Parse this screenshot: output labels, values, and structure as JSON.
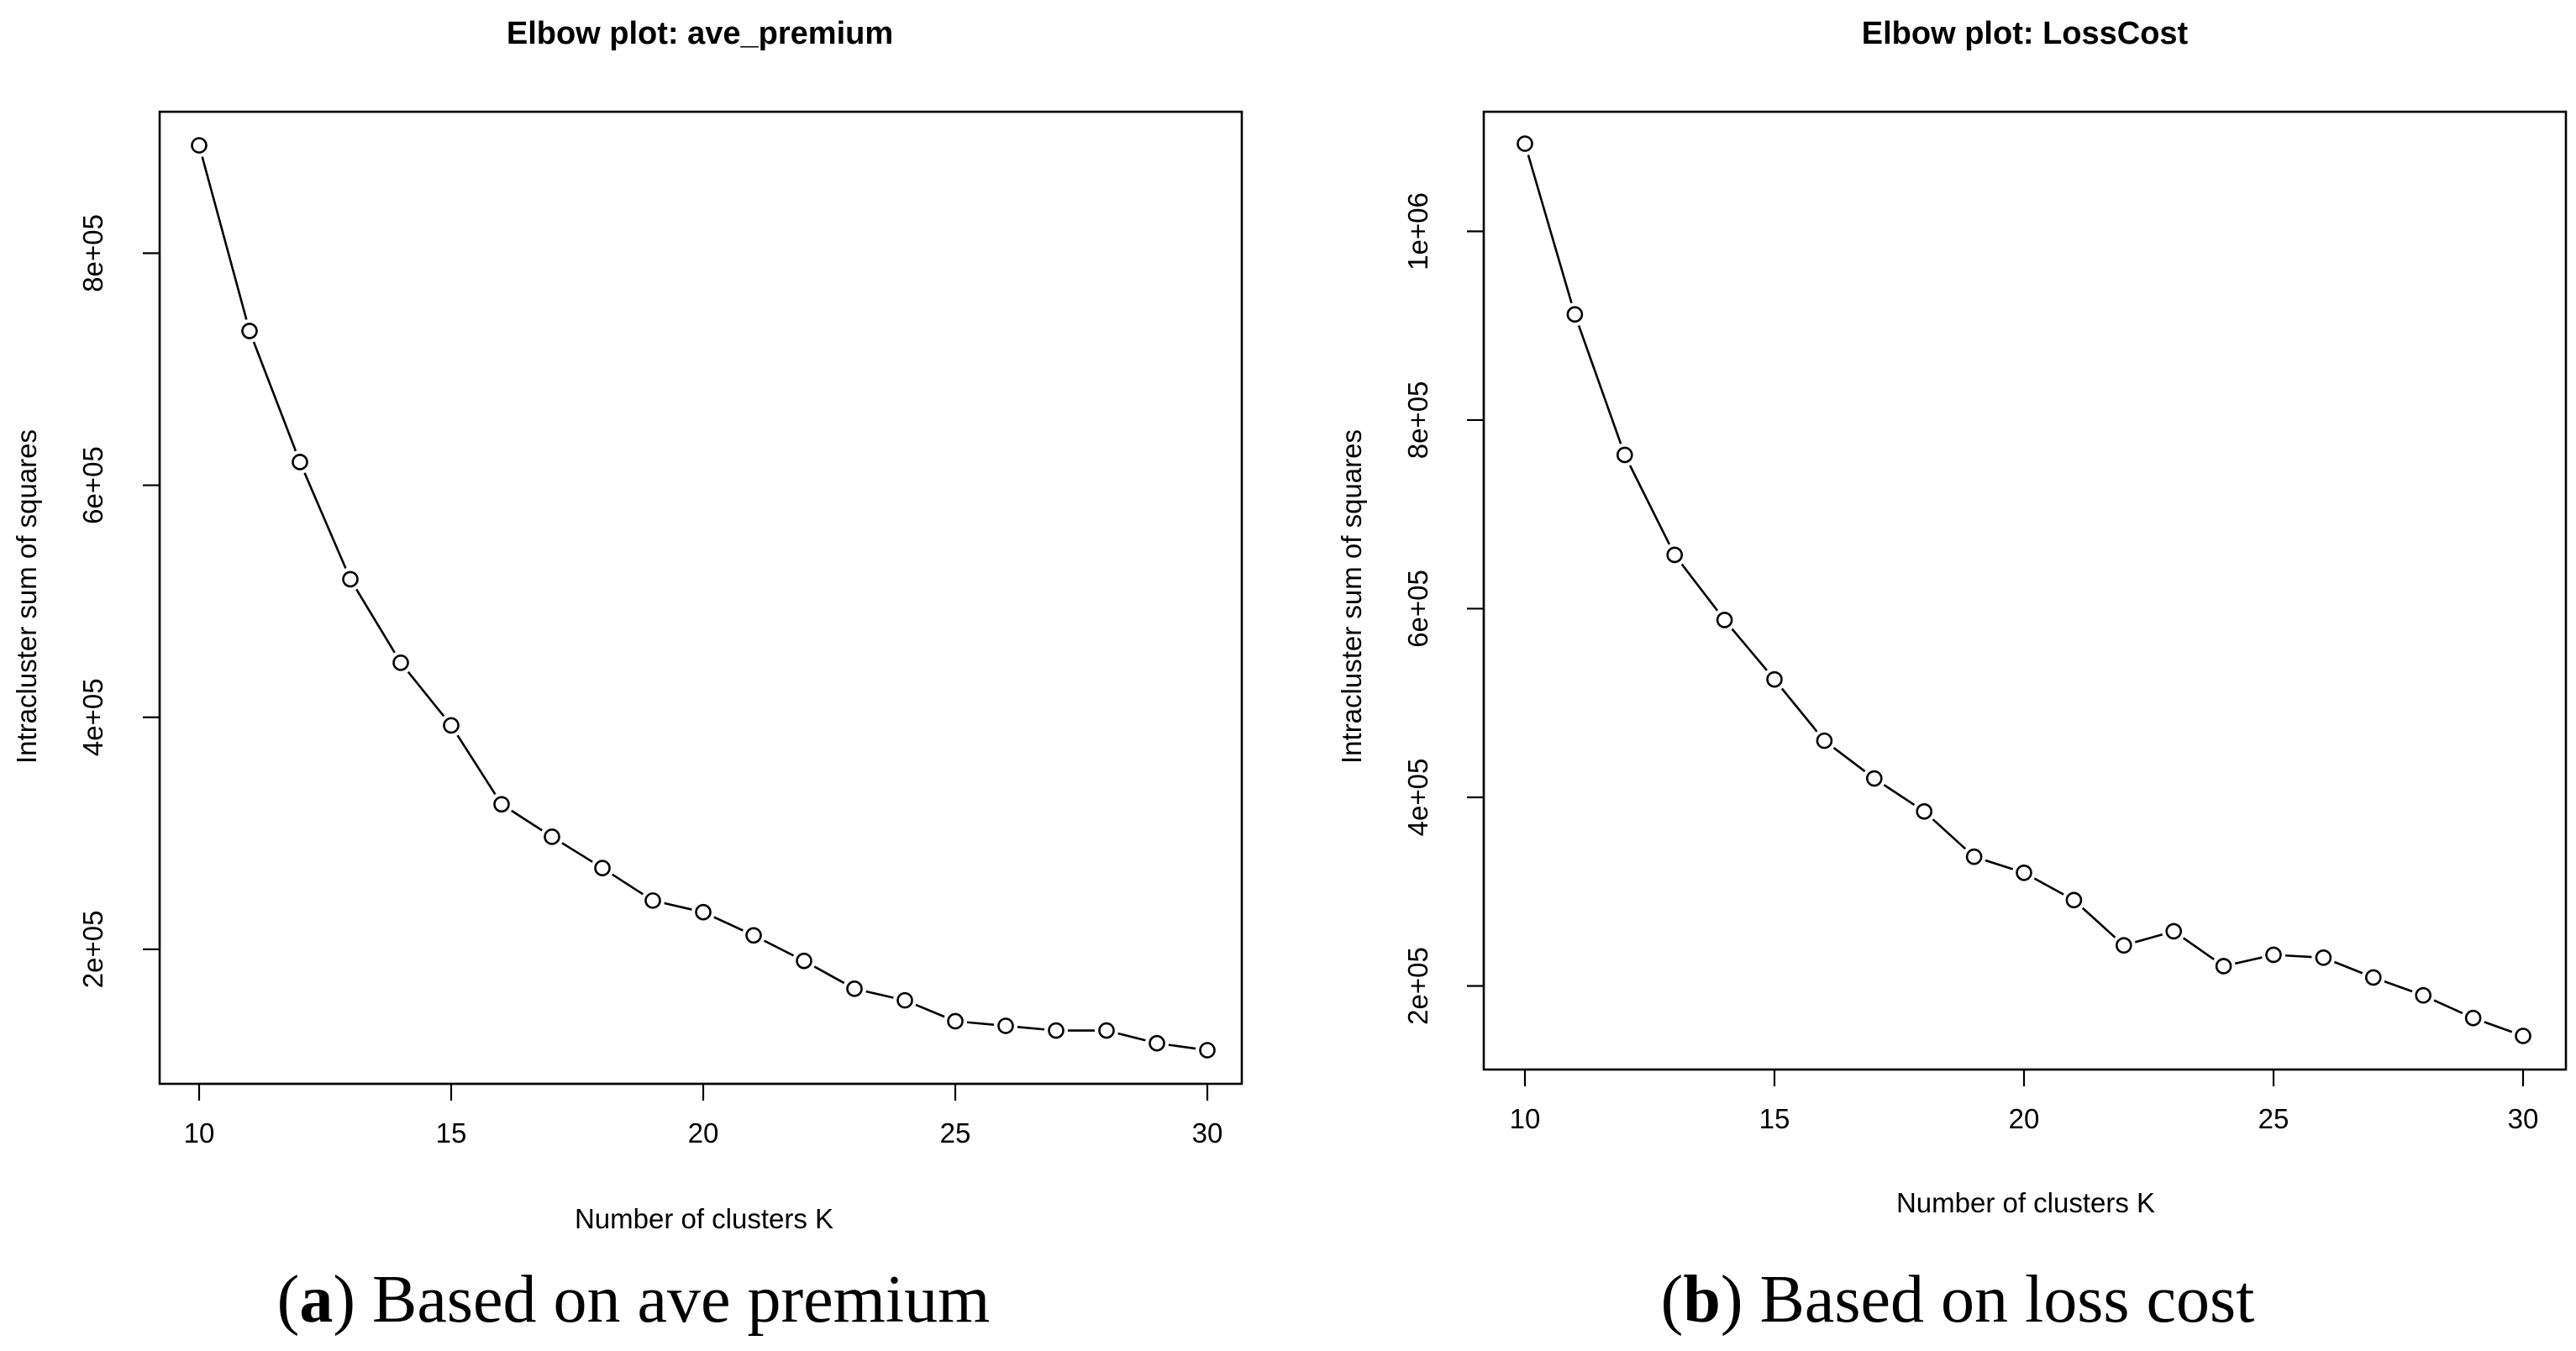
{
  "chart_data": [
    {
      "type": "line",
      "title": "Elbow plot: ave_premium",
      "xlabel": "Number of clusters K",
      "ylabel": "Intracluster sum of squares",
      "x": [
        10,
        11,
        12,
        13,
        14,
        15,
        16,
        17,
        18,
        19,
        20,
        21,
        22,
        23,
        24,
        25,
        26,
        27,
        28,
        29,
        30
      ],
      "values": [
        893000,
        733000,
        620000,
        519000,
        447000,
        393000,
        325000,
        297000,
        270000,
        242000,
        232000,
        212000,
        190000,
        166000,
        156000,
        138000,
        134000,
        130000,
        130000,
        119000,
        113000
      ],
      "xlim": [
        10,
        30
      ],
      "ylim": [
        113000,
        893000
      ],
      "xticks": [
        10,
        15,
        20,
        25,
        30
      ],
      "xtick_labels": [
        "10",
        "15",
        "20",
        "25",
        "30"
      ],
      "yticks": [
        200000,
        400000,
        600000,
        800000
      ],
      "ytick_labels": [
        "2e+05",
        "4e+05",
        "6e+05",
        "8e+05"
      ],
      "markers": "open-circle",
      "grid": false,
      "caption_letter": "a",
      "caption_text": "Based on ave premium"
    },
    {
      "type": "line",
      "title": "Elbow plot: LossCost",
      "xlabel": "Number of clusters K",
      "ylabel": "Intracluster sum of squares",
      "x": [
        10,
        11,
        12,
        13,
        14,
        15,
        16,
        17,
        18,
        19,
        20,
        21,
        22,
        23,
        24,
        25,
        26,
        27,
        28,
        29,
        30
      ],
      "values": [
        1093000,
        912000,
        763000,
        657000,
        588000,
        525000,
        460000,
        420000,
        385000,
        337000,
        320000,
        291000,
        243000,
        258000,
        221000,
        233000,
        230000,
        209000,
        190000,
        166000,
        147000
      ],
      "xlim": [
        10,
        30
      ],
      "ylim": [
        147000,
        1093000
      ],
      "xticks": [
        10,
        15,
        20,
        25,
        30
      ],
      "xtick_labels": [
        "10",
        "15",
        "20",
        "25",
        "30"
      ],
      "yticks": [
        200000,
        400000,
        600000,
        800000,
        1000000
      ],
      "ytick_labels": [
        "2e+05",
        "4e+05",
        "6e+05",
        "8e+05",
        "1e+06"
      ],
      "markers": "open-circle",
      "grid": false,
      "caption_letter": "b",
      "caption_text": "Based on loss cost"
    }
  ]
}
